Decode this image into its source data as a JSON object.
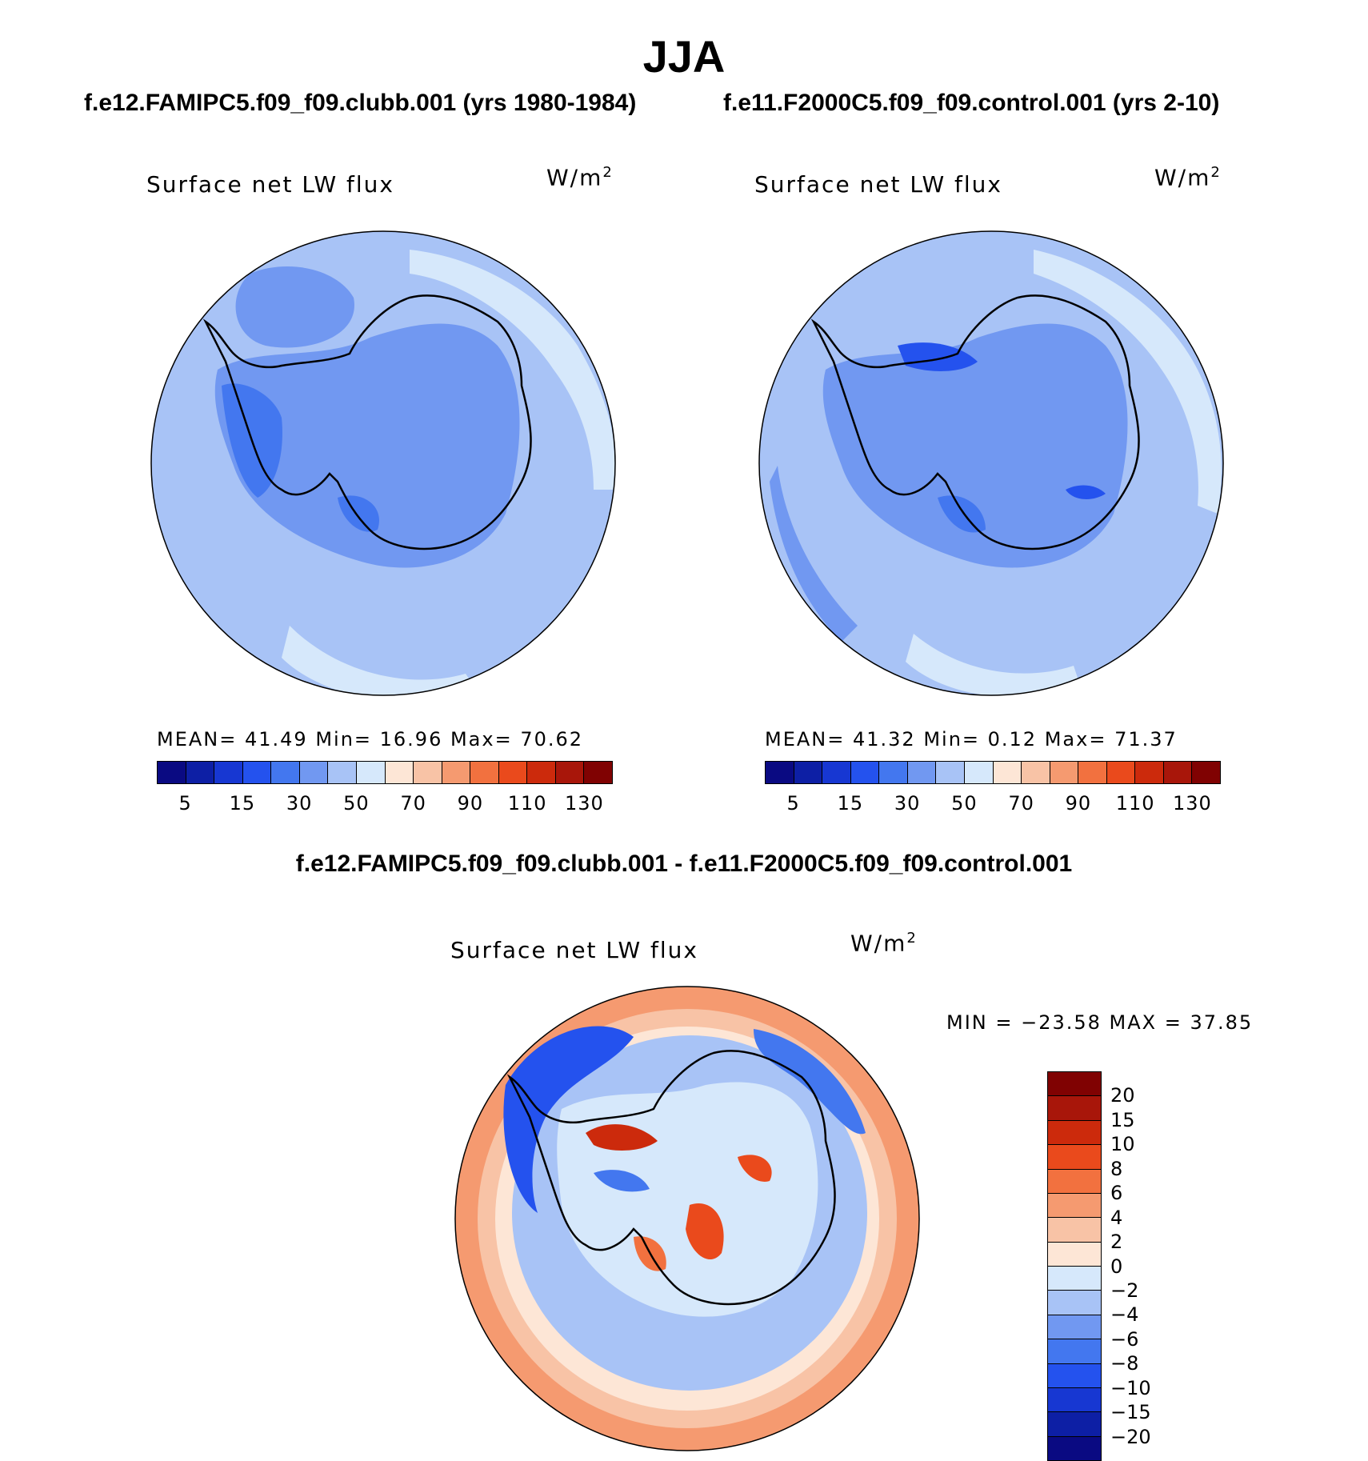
{
  "season": "JJA",
  "colors": {
    "abs_palette": [
      "#0a0a82",
      "#0d1fa5",
      "#1737d2",
      "#2452ee",
      "#4377ef",
      "#7198f1",
      "#a8c3f6",
      "#d6e8fb",
      "#fde6d6",
      "#f8c3a6",
      "#f59a70",
      "#f2713f",
      "#ea4a1c",
      "#cc2a0c",
      "#a8160a",
      "#800202"
    ],
    "diff_palette": [
      "#0a0a82",
      "#0d1fa5",
      "#1737d2",
      "#2452ee",
      "#4377ef",
      "#7198f1",
      "#a8c3f6",
      "#d6e8fb",
      "#fde6d6",
      "#f8c3a6",
      "#f59a70",
      "#f2713f",
      "#ea4a1c",
      "#cc2a0c",
      "#a8160a",
      "#800202"
    ],
    "coastline": "#000000"
  },
  "panels": [
    {
      "case_title": "f.e12.FAMIPC5.f09_f09.clubb.001 (yrs 1980-1984)",
      "variable": "Surface net LW flux",
      "units_base": "W/m",
      "units_exp": "2",
      "stats": "MEAN=  41.49   Min=   16.96   Max=  70.62",
      "colorbar_labels": [
        "5",
        "15",
        "30",
        "50",
        "70",
        "90",
        "110",
        "130"
      ],
      "field": {
        "mean": 41.49,
        "min": 16.96,
        "max": 70.62
      }
    },
    {
      "case_title": "f.e11.F2000C5.f09_f09.control.001 (yrs 2-10)",
      "variable": "Surface net LW flux",
      "units_base": "W/m",
      "units_exp": "2",
      "stats": "MEAN=  41.32   Min=    0.12   Max=  71.37",
      "colorbar_labels": [
        "5",
        "15",
        "30",
        "50",
        "70",
        "90",
        "110",
        "130"
      ],
      "field": {
        "mean": 41.32,
        "min": 0.12,
        "max": 71.37
      }
    }
  ],
  "difference": {
    "title": "f.e12.FAMIPC5.f09_f09.clubb.001 - f.e11.F2000C5.f09_f09.control.001",
    "variable": "Surface net LW flux",
    "units_base": "W/m",
    "units_exp": "2",
    "stats": "MIN = −23.58 MAX =   37.85",
    "colorbar_labels": [
      "20",
      "15",
      "10",
      "8",
      "6",
      "4",
      "2",
      "0",
      "−2",
      "−4",
      "−6",
      "−8",
      "−10",
      "−15",
      "−20"
    ],
    "field": {
      "min": -23.58,
      "max": 37.85
    }
  }
}
